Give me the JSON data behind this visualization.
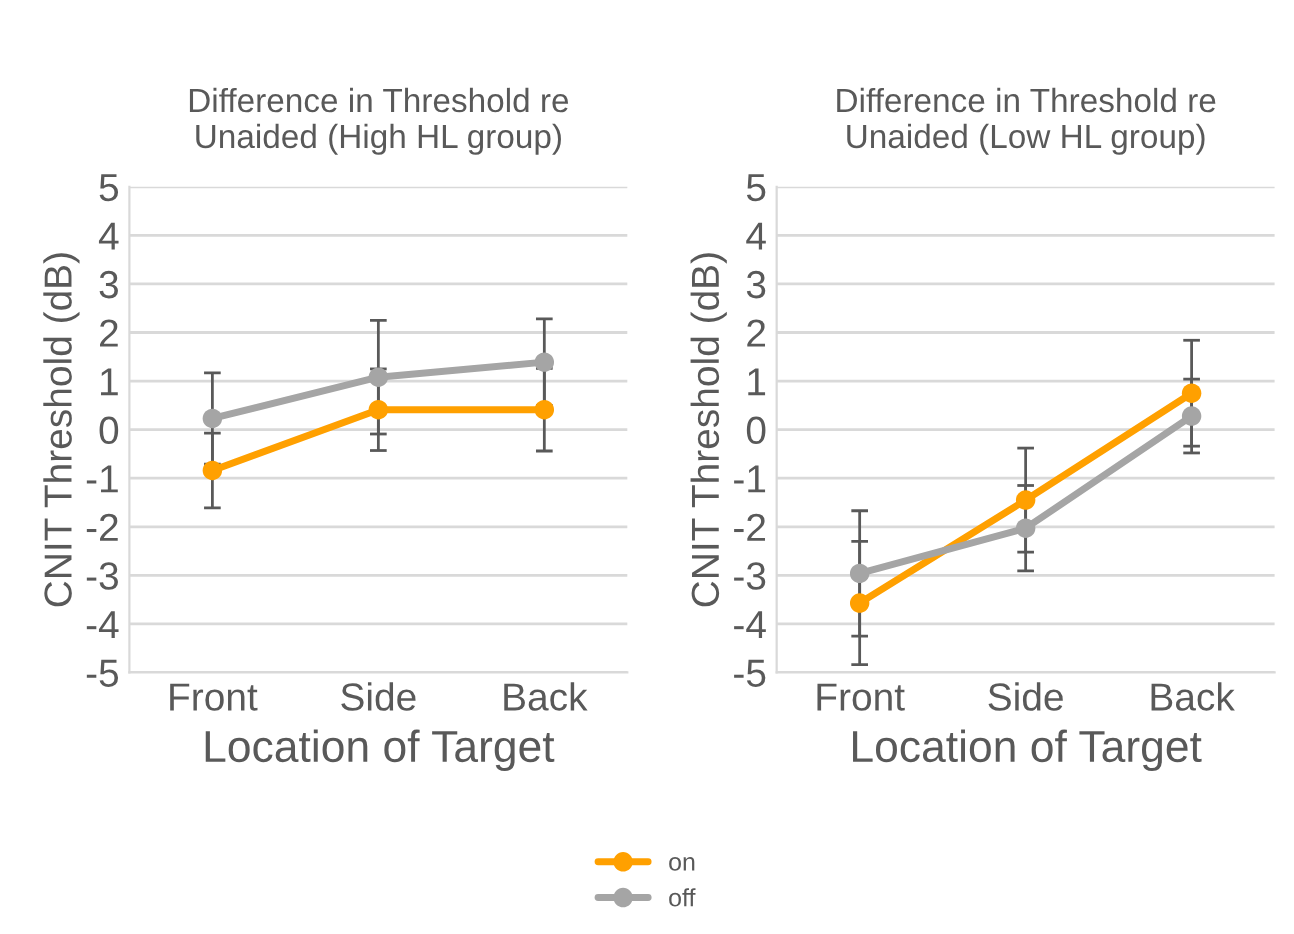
{
  "chart_data": [
    {
      "type": "line",
      "title": "Difference in Threshold re\nUnaided (High HL group)",
      "xlabel": "Location of Target",
      "ylabel": "CNIT Threshold (dB)",
      "categories": [
        "Front",
        "Side",
        "Back"
      ],
      "ylim": [
        -5,
        5
      ],
      "yticks": [
        -5,
        -4,
        -3,
        -2,
        -1,
        0,
        1,
        2,
        3,
        4,
        5
      ],
      "grid": "y",
      "marker": "circle",
      "line_style": "solid",
      "legend": "bottom",
      "series": [
        {
          "name": "on",
          "color": "#ffa000",
          "values": [
            -0.84,
            0.41,
            0.41
          ],
          "errors": [
            0.77,
            0.84,
            0.85
          ]
        },
        {
          "name": "off",
          "color": "#a5a5a5",
          "values": [
            0.23,
            1.08,
            1.39
          ],
          "errors": [
            0.94,
            1.17,
            0.89
          ]
        }
      ]
    },
    {
      "type": "line",
      "title": "Difference in Threshold re\nUnaided (Low HL group)",
      "xlabel": "Location of Target",
      "ylabel": "CNIT Threshold (dB)",
      "categories": [
        "Front",
        "Side",
        "Back"
      ],
      "ylim": [
        -5,
        5
      ],
      "yticks": [
        -5,
        -4,
        -3,
        -2,
        -1,
        0,
        1,
        2,
        3,
        4,
        5
      ],
      "grid": "y",
      "marker": "circle",
      "line_style": "solid",
      "series": [
        {
          "color": "#ffa000",
          "values": [
            -3.57,
            -1.45,
            0.75
          ],
          "errors": [
            1.27,
            1.07,
            1.09
          ]
        },
        {
          "color": "#a5a5a5",
          "values": [
            -2.96,
            -2.03,
            0.28
          ],
          "errors": [
            1.29,
            0.88,
            0.76
          ]
        }
      ]
    }
  ]
}
